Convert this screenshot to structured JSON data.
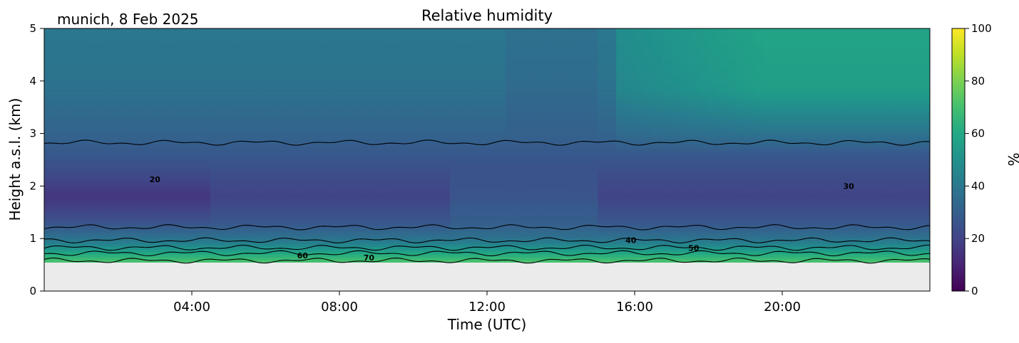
{
  "header": {
    "location_date": "munich, 8 Feb 2025",
    "title": "Relative humidity"
  },
  "chart_data": {
    "type": "heatmap",
    "title": "Relative humidity",
    "xlabel": "Time (UTC)",
    "ylabel": "Height a.s.l. (km)",
    "xlim_hours": [
      0,
      24
    ],
    "ylim_km": [
      0,
      5
    ],
    "x_ticks": [
      {
        "hour": 4,
        "label": "04:00"
      },
      {
        "hour": 8,
        "label": "08:00"
      },
      {
        "hour": 12,
        "label": "12:00"
      },
      {
        "hour": 16,
        "label": "16:00"
      },
      {
        "hour": 20,
        "label": "20:00"
      }
    ],
    "y_ticks": [
      {
        "km": 0,
        "label": "0"
      },
      {
        "km": 1,
        "label": "1"
      },
      {
        "km": 2,
        "label": "2"
      },
      {
        "km": 3,
        "label": "3"
      },
      {
        "km": 4,
        "label": "4"
      },
      {
        "km": 5,
        "label": "5"
      }
    ],
    "data_min_height_km": 0.55,
    "colorbar": {
      "label": "%",
      "colormap": "viridis",
      "range": [
        0,
        100
      ],
      "ticks": [
        "0",
        "20",
        "40",
        "60",
        "80",
        "100"
      ]
    },
    "contour_labels": [
      {
        "text": "20",
        "hour": 3.0,
        "km": 2.13
      },
      {
        "text": "30",
        "hour": 21.8,
        "km": 2.0
      },
      {
        "text": "40",
        "hour": 15.9,
        "km": 0.97
      },
      {
        "text": "50",
        "hour": 17.6,
        "km": 0.82
      },
      {
        "text": "60",
        "hour": 7.0,
        "km": 0.68
      },
      {
        "text": "70",
        "hour": 8.8,
        "km": 0.64
      }
    ],
    "humidity_profile": [
      {
        "km": 0.55,
        "rh": 72
      },
      {
        "km": 0.7,
        "rh": 62
      },
      {
        "km": 0.85,
        "rh": 48
      },
      {
        "km": 1.0,
        "rh": 38
      },
      {
        "km": 1.3,
        "rh": 27
      },
      {
        "km": 1.8,
        "rh": 20
      },
      {
        "km": 2.3,
        "rh": 24
      },
      {
        "km": 3.0,
        "rh": 32
      },
      {
        "km": 4.0,
        "rh": 38
      },
      {
        "km": 5.0,
        "rh": 40
      }
    ],
    "contour_levels": [
      20,
      30,
      40,
      50,
      60,
      70
    ],
    "grid": false
  }
}
